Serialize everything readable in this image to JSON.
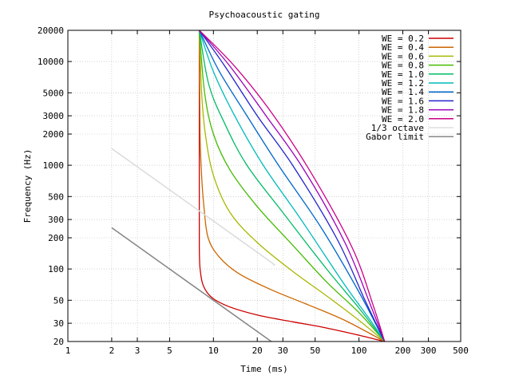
{
  "chart_data": {
    "type": "line",
    "title": "Psychoacoustic gating",
    "xlabel": "Time (ms)",
    "ylabel": "Frequency (Hz)",
    "xscale": "log",
    "yscale": "log",
    "xlim": [
      1,
      500
    ],
    "ylim": [
      20,
      20000
    ],
    "x_ticks": [
      1,
      2,
      3,
      5,
      10,
      20,
      30,
      50,
      100,
      200,
      300,
      500
    ],
    "y_ticks": [
      20,
      30,
      50,
      100,
      200,
      300,
      500,
      1000,
      2000,
      3000,
      5000,
      10000,
      20000
    ],
    "grid": true,
    "legend_position": "top-right",
    "series": [
      {
        "name": "WE = 0.2",
        "color": "#cc0000",
        "points": [
          [
            8,
            20000
          ],
          [
            8,
            2000
          ],
          [
            8,
            300
          ],
          [
            8.1,
            100
          ],
          [
            9,
            60
          ],
          [
            12,
            45
          ],
          [
            20,
            36
          ],
          [
            35,
            31
          ],
          [
            60,
            27
          ],
          [
            100,
            23
          ],
          [
            150,
            20
          ]
        ]
      },
      {
        "name": "WE = 0.4",
        "color": "#cc6600",
        "points": [
          [
            8,
            20000
          ],
          [
            8.1,
            2000
          ],
          [
            8.3,
            800
          ],
          [
            8.6,
            400
          ],
          [
            9.2,
            200
          ],
          [
            11,
            130
          ],
          [
            15,
            90
          ],
          [
            25,
            63
          ],
          [
            45,
            45
          ],
          [
            80,
            32
          ],
          [
            150,
            20
          ]
        ]
      },
      {
        "name": "WE = 0.6",
        "color": "#a8b800",
        "points": [
          [
            8,
            20000
          ],
          [
            8.3,
            5000
          ],
          [
            8.8,
            2000
          ],
          [
            10,
            800
          ],
          [
            13,
            350
          ],
          [
            20,
            180
          ],
          [
            35,
            95
          ],
          [
            60,
            55
          ],
          [
            100,
            32
          ],
          [
            150,
            20
          ]
        ]
      },
      {
        "name": "WE = 0.8",
        "color": "#44bb00",
        "points": [
          [
            8,
            20000
          ],
          [
            8.7,
            5000
          ],
          [
            10,
            2000
          ],
          [
            13,
            900
          ],
          [
            20,
            400
          ],
          [
            35,
            170
          ],
          [
            60,
            75
          ],
          [
            100,
            38
          ],
          [
            150,
            20
          ]
        ]
      },
      {
        "name": "WE = 1.0",
        "color": "#00bb66",
        "points": [
          [
            8,
            20000
          ],
          [
            9.3,
            6000
          ],
          [
            12,
            2500
          ],
          [
            17,
            1000
          ],
          [
            30,
            350
          ],
          [
            60,
            100
          ],
          [
            100,
            42
          ],
          [
            150,
            20
          ]
        ]
      },
      {
        "name": "WE = 1.2",
        "color": "#00bbbb",
        "points": [
          [
            8,
            20000
          ],
          [
            10,
            8000
          ],
          [
            14,
            3000
          ],
          [
            22,
            1000
          ],
          [
            40,
            300
          ],
          [
            80,
            70
          ],
          [
            120,
            32
          ],
          [
            150,
            20
          ]
        ]
      },
      {
        "name": "WE = 1.4",
        "color": "#0066cc",
        "points": [
          [
            8,
            20000
          ],
          [
            11,
            8000
          ],
          [
            17,
            3000
          ],
          [
            28,
            1000
          ],
          [
            55,
            250
          ],
          [
            100,
            60
          ],
          [
            150,
            20
          ]
        ]
      },
      {
        "name": "WE = 1.6",
        "color": "#2222cc",
        "points": [
          [
            8,
            20000
          ],
          [
            12,
            9000
          ],
          [
            20,
            3000
          ],
          [
            35,
            1000
          ],
          [
            70,
            200
          ],
          [
            110,
            50
          ],
          [
            150,
            20
          ]
        ]
      },
      {
        "name": "WE = 1.8",
        "color": "#9900bb",
        "points": [
          [
            8,
            20000
          ],
          [
            13,
            9000
          ],
          [
            23,
            3000
          ],
          [
            42,
            900
          ],
          [
            80,
            180
          ],
          [
            120,
            45
          ],
          [
            150,
            20
          ]
        ]
      },
      {
        "name": "WE = 2.0",
        "color": "#cc0088",
        "points": [
          [
            8,
            20000
          ],
          [
            14,
            9000
          ],
          [
            26,
            3000
          ],
          [
            48,
            800
          ],
          [
            90,
            160
          ],
          [
            125,
            45
          ],
          [
            150,
            20
          ]
        ]
      },
      {
        "name": "1/3 octave",
        "color": "#dddddd",
        "points": [
          [
            2,
            1450
          ],
          [
            20,
            145
          ],
          [
            26,
            110
          ]
        ]
      },
      {
        "name": "Gabor limit",
        "color": "#888888",
        "points": [
          [
            2,
            250
          ],
          [
            10,
            50
          ],
          [
            25,
            20
          ]
        ]
      }
    ]
  }
}
